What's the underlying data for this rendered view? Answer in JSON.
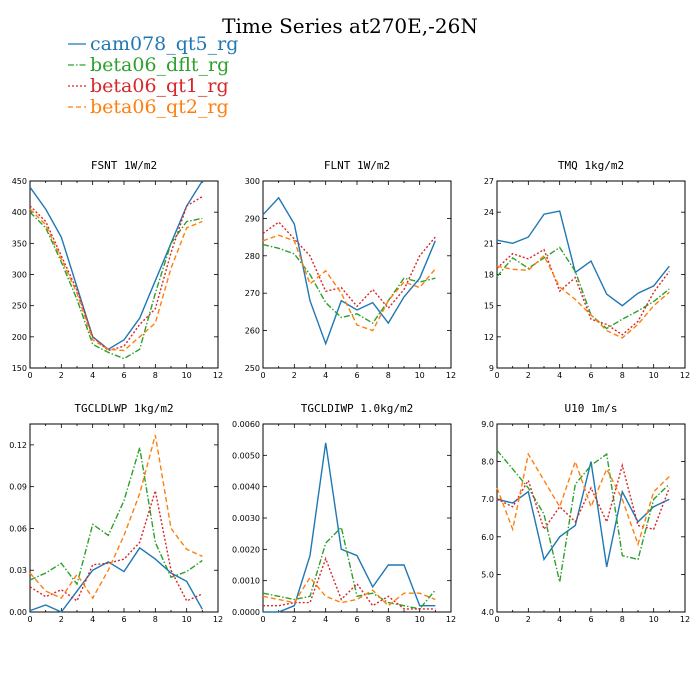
{
  "title": "Time Series at270E,-26N",
  "legend": [
    {
      "name": "cam078_qt5_rg",
      "color": "#1f77b4",
      "dash": "solid"
    },
    {
      "name": "beta06_dflt_rg",
      "color": "#2ca02c",
      "dash": "dashdot"
    },
    {
      "name": "beta06_qt1_rg",
      "color": "#d62728",
      "dash": "dot"
    },
    {
      "name": "beta06_qt2_rg",
      "color": "#ff7f0e",
      "dash": "dash"
    }
  ],
  "chart_data": [
    {
      "type": "line",
      "title": "FSNT   1W/m2",
      "x": [
        0,
        1,
        2,
        3,
        4,
        5,
        6,
        7,
        8,
        9,
        10,
        11
      ],
      "xlim": [
        0,
        12
      ],
      "xticks": [
        "0",
        "2",
        "4",
        "6",
        "8",
        "10",
        "12"
      ],
      "ylim": [
        150,
        450
      ],
      "yticks": [
        "150",
        "200",
        "250",
        "300",
        "350",
        "400",
        "450"
      ],
      "series": [
        {
          "name": "cam078_qt5_rg",
          "values": [
            440,
            405,
            360,
            280,
            200,
            180,
            195,
            230,
            290,
            350,
            410,
            450
          ]
        },
        {
          "name": "beta06_dflt_rg",
          "values": [
            400,
            375,
            320,
            260,
            188,
            175,
            165,
            180,
            270,
            350,
            385,
            390
          ]
        },
        {
          "name": "beta06_qt1_rg",
          "values": [
            410,
            385,
            330,
            275,
            200,
            178,
            185,
            220,
            245,
            335,
            410,
            425
          ]
        },
        {
          "name": "beta06_qt2_rg",
          "values": [
            405,
            380,
            325,
            270,
            195,
            180,
            178,
            200,
            222,
            310,
            375,
            385
          ]
        }
      ]
    },
    {
      "type": "line",
      "title": "FLNT   1W/m2",
      "x": [
        0,
        1,
        2,
        3,
        4,
        5,
        6,
        7,
        8,
        9,
        10,
        11
      ],
      "xlim": [
        0,
        12
      ],
      "xticks": [
        "0",
        "2",
        "4",
        "6",
        "8",
        "10",
        "12"
      ],
      "ylim": [
        250,
        300
      ],
      "yticks": [
        "250",
        "260",
        "270",
        "280",
        "290",
        "300"
      ],
      "series": [
        {
          "name": "cam078_qt5_rg",
          "values": [
            291,
            295.5,
            288.5,
            268,
            256.5,
            268,
            265.5,
            267.5,
            262,
            269,
            274,
            284
          ]
        },
        {
          "name": "beta06_dflt_rg",
          "values": [
            283,
            282,
            280.5,
            275,
            267.5,
            263.5,
            264.5,
            262,
            268,
            274,
            273,
            274
          ]
        },
        {
          "name": "beta06_qt1_rg",
          "values": [
            286,
            289,
            284.5,
            280,
            270.5,
            271.5,
            266.5,
            271,
            266,
            271,
            280,
            285
          ]
        },
        {
          "name": "beta06_qt2_rg",
          "values": [
            284,
            285.5,
            284,
            272.5,
            276,
            270,
            261.5,
            260,
            268,
            273,
            271.5,
            276.5
          ]
        }
      ]
    },
    {
      "type": "line",
      "title": "TMQ   1kg/m2",
      "x": [
        0,
        1,
        2,
        3,
        4,
        5,
        6,
        7,
        8,
        9,
        10,
        11
      ],
      "xlim": [
        0,
        12
      ],
      "xticks": [
        "0",
        "2",
        "4",
        "6",
        "8",
        "10",
        "12"
      ],
      "ylim": [
        9,
        27
      ],
      "yticks": [
        "9",
        "12",
        "15",
        "18",
        "21",
        "24",
        "27"
      ],
      "series": [
        {
          "name": "cam078_qt5_rg",
          "values": [
            21.3,
            21,
            21.6,
            23.8,
            24.1,
            18.2,
            19.3,
            16.1,
            15,
            16.2,
            16.9,
            18.8
          ]
        },
        {
          "name": "beta06_dflt_rg",
          "values": [
            17.8,
            19.6,
            18.6,
            19.6,
            20.6,
            18.3,
            14.1,
            12.8,
            13.7,
            14.5,
            15.4,
            16.6
          ]
        },
        {
          "name": "beta06_qt1_rg",
          "values": [
            18.6,
            20,
            19.5,
            20.4,
            16.4,
            17.7,
            13.7,
            13.2,
            12.2,
            13.5,
            16.3,
            18.3
          ]
        },
        {
          "name": "beta06_qt2_rg",
          "values": [
            18.8,
            18.5,
            18.4,
            19.8,
            16.8,
            15.6,
            14.1,
            12.6,
            11.9,
            13.2,
            15,
            16.3
          ]
        }
      ]
    },
    {
      "type": "line",
      "title": "TGCLDLWP   1kg/m2",
      "x": [
        0,
        1,
        2,
        3,
        4,
        5,
        6,
        7,
        8,
        9,
        10,
        11
      ],
      "xlim": [
        0,
        12
      ],
      "xticks": [
        "0",
        "2",
        "4",
        "6",
        "8",
        "10",
        "12"
      ],
      "ylim": [
        0,
        0.135
      ],
      "yticks": [
        "0.00",
        "0.03",
        "0.06",
        "0.09",
        "0.12"
      ],
      "series": [
        {
          "name": "cam078_qt5_rg",
          "values": [
            0.001,
            0.005,
            0,
            0.015,
            0.03,
            0.036,
            0.029,
            0.046,
            0.038,
            0.028,
            0.022,
            0.002
          ]
        },
        {
          "name": "beta06_dflt_rg",
          "values": [
            0.023,
            0.028,
            0.035,
            0.02,
            0.063,
            0.055,
            0.08,
            0.118,
            0.05,
            0.025,
            0.029,
            0.037
          ]
        },
        {
          "name": "beta06_qt1_rg",
          "values": [
            0.018,
            0.011,
            0.016,
            0.008,
            0.034,
            0.035,
            0.038,
            0.05,
            0.087,
            0.03,
            0.008,
            0.013
          ]
        },
        {
          "name": "beta06_qt2_rg",
          "values": [
            0.028,
            0.015,
            0.01,
            0.027,
            0.01,
            0.03,
            0.055,
            0.085,
            0.127,
            0.06,
            0.045,
            0.04
          ]
        }
      ]
    },
    {
      "type": "line",
      "title": "TGCLDIWP   1.0kg/m2",
      "x": [
        0,
        1,
        2,
        3,
        4,
        5,
        6,
        7,
        8,
        9,
        10,
        11
      ],
      "xlim": [
        0,
        12
      ],
      "xticks": [
        "0",
        "2",
        "4",
        "6",
        "8",
        "10",
        "12"
      ],
      "ylim": [
        0,
        0.006
      ],
      "yticks": [
        "0.0000",
        "0.0010",
        "0.0020",
        "0.0030",
        "0.0040",
        "0.0050",
        "0.0060"
      ],
      "series": [
        {
          "name": "cam078_qt5_rg",
          "values": [
            0,
            0,
            0.0002,
            0.0018,
            0.0054,
            0.002,
            0.0018,
            0.0008,
            0.0015,
            0.0015,
            0.0002,
            0.0002
          ]
        },
        {
          "name": "beta06_dflt_rg",
          "values": [
            0.0006,
            0.0005,
            0.0004,
            0.0005,
            0.0022,
            0.0027,
            0.0005,
            0.0006,
            0.0003,
            0.0002,
            0.0001,
            0.0007
          ]
        },
        {
          "name": "beta06_qt1_rg",
          "values": [
            0.0002,
            0.0002,
            0.0003,
            0.0003,
            0.0017,
            0.0004,
            0.0009,
            0.0002,
            0.0005,
            0.0001,
            0.0001,
            0.0001
          ]
        },
        {
          "name": "beta06_qt2_rg",
          "values": [
            0.0005,
            0.0004,
            0.0003,
            0.0011,
            0.0005,
            0.0003,
            0.0004,
            0.0007,
            0.0002,
            0.0006,
            0.0006,
            0.0004
          ]
        }
      ]
    },
    {
      "type": "line",
      "title": "U10   1m/s",
      "x": [
        0,
        1,
        2,
        3,
        4,
        5,
        6,
        7,
        8,
        9,
        10,
        11
      ],
      "xlim": [
        0,
        12
      ],
      "xticks": [
        "0",
        "2",
        "4",
        "6",
        "8",
        "10",
        "12"
      ],
      "ylim": [
        4,
        9
      ],
      "yticks": [
        "4.0",
        "5.0",
        "6.0",
        "7.0",
        "8.0",
        "9.0"
      ],
      "series": [
        {
          "name": "cam078_qt5_rg",
          "values": [
            7,
            6.9,
            7.2,
            5.4,
            6,
            6.3,
            8,
            5.2,
            7.2,
            6.4,
            6.8,
            7
          ]
        },
        {
          "name": "beta06_dflt_rg",
          "values": [
            8.3,
            7.8,
            7.3,
            6.6,
            4.8,
            7.4,
            7.9,
            8.2,
            5.5,
            5.4,
            7,
            7.4
          ]
        },
        {
          "name": "beta06_qt1_rg",
          "values": [
            7,
            6.8,
            7.5,
            6.2,
            6.8,
            6.4,
            7.3,
            6.4,
            7.9,
            6.3,
            6.2,
            7.3
          ]
        },
        {
          "name": "beta06_qt2_rg",
          "values": [
            7.3,
            6.2,
            8.2,
            7.5,
            6.8,
            8,
            6.8,
            7.8,
            7,
            5.8,
            7.2,
            7.6
          ]
        }
      ]
    }
  ]
}
